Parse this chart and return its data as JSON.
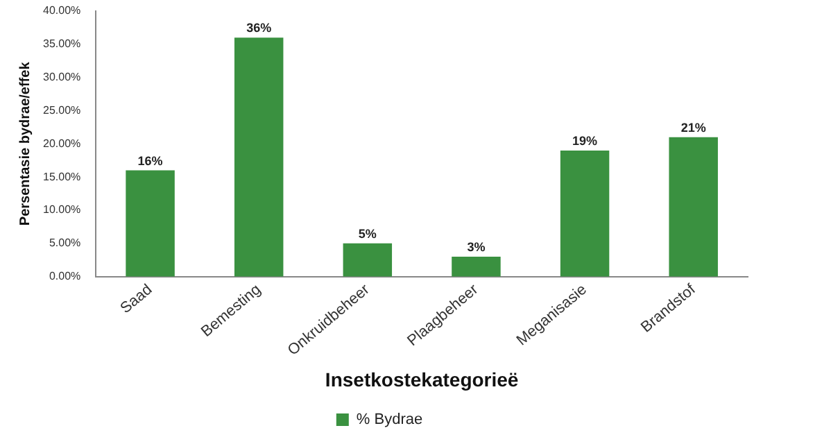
{
  "chart_data": {
    "type": "bar",
    "xlabel": "Insetkostekategorieë",
    "ylabel": "Persentasie bydrae/effek",
    "categories": [
      "Saad",
      "Bemesting",
      "Onkruidbeheer",
      "Plaagbeheer",
      "Meganisasie",
      "Brandstof"
    ],
    "series": [
      {
        "name": "% Bydrae",
        "color": "#3a9140",
        "values": [
          16,
          36,
          5,
          3,
          19,
          21
        ],
        "value_labels": [
          "16%",
          "36%",
          "5%",
          "3%",
          "19%",
          "21%"
        ]
      }
    ],
    "ylim": [
      0,
      40
    ],
    "yticks": [
      {
        "value": 0,
        "label": "0.00%"
      },
      {
        "value": 5,
        "label": "5.00%"
      },
      {
        "value": 10,
        "label": "10.00%"
      },
      {
        "value": 15,
        "label": "15.00%"
      },
      {
        "value": 20,
        "label": "20.00%"
      },
      {
        "value": 25,
        "label": "25.00%"
      },
      {
        "value": 30,
        "label": "30.00%"
      },
      {
        "value": 35,
        "label": "35.00%"
      },
      {
        "value": 40,
        "label": "40.00%"
      }
    ],
    "grid": false,
    "legend": "bottom"
  }
}
